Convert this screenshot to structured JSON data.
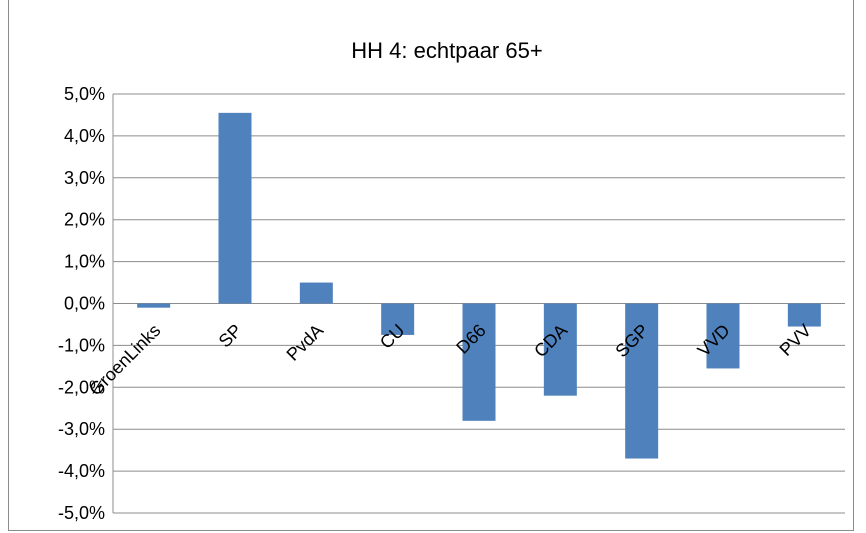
{
  "chart_data": {
    "type": "bar",
    "title": "HH 4:  echtpaar 65+",
    "xlabel": "",
    "ylabel": "",
    "categories": [
      "GroenLinks",
      "SP",
      "PvdA",
      "CU",
      "D66",
      "CDA",
      "SGP",
      "VVD",
      "PVV"
    ],
    "values": [
      -0.1,
      4.55,
      0.5,
      -0.75,
      -2.8,
      -2.2,
      -3.7,
      -1.55,
      -0.55
    ],
    "ylim": [
      -5.0,
      5.0
    ],
    "y_ticks": [
      "5,0%",
      "4,0%",
      "3,0%",
      "2,0%",
      "1,0%",
      "0,0%",
      "-1,0%",
      "-2,0%",
      "-3,0%",
      "-4,0%",
      "-5,0%"
    ],
    "y_tick_values": [
      5,
      4,
      3,
      2,
      1,
      0,
      -1,
      -2,
      -3,
      -4,
      -5
    ],
    "grid": true,
    "legend": "none",
    "bar_color": "#4f81bd"
  }
}
